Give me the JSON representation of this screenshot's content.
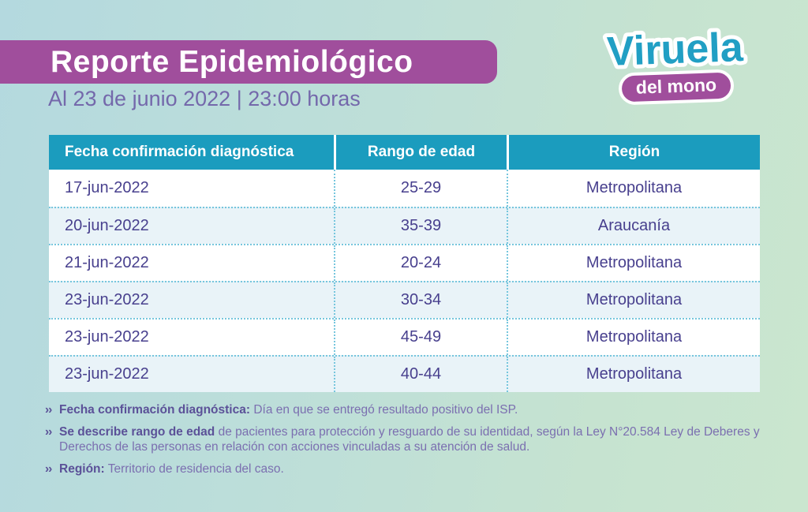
{
  "header": {
    "title": "Reporte Epidemiológico",
    "subtitle": "Al 23 de junio 2022 | 23:00 horas"
  },
  "logo": {
    "line1": "Viruela",
    "line2": "del mono"
  },
  "table": {
    "columns": [
      "Fecha confirmación diagnóstica",
      "Rango de edad",
      "Región"
    ],
    "rows": [
      [
        "17-jun-2022",
        "25-29",
        "Metropolitana"
      ],
      [
        "20-jun-2022",
        "35-39",
        "Araucanía"
      ],
      [
        "21-jun-2022",
        "20-24",
        "Metropolitana"
      ],
      [
        "23-jun-2022",
        "30-34",
        "Metropolitana"
      ],
      [
        "23-jun-2022",
        "45-49",
        "Metropolitana"
      ],
      [
        "23-jun-2022",
        "40-44",
        "Metropolitana"
      ]
    ]
  },
  "notes": [
    {
      "bullet": "››",
      "bold": "Fecha confirmación diagnóstica:",
      "text": " Día en que se entregó resultado positivo del ISP."
    },
    {
      "bullet": "››",
      "bold": "Se describe rango de edad",
      "text": " de pacientes para protección y resguardo de su identidad, según la Ley N°20.584 Ley de Deberes y Derechos de las personas en relación con acciones vinculadas a su atención de salud."
    },
    {
      "bullet": "››",
      "bold": "Región:",
      "text": " Territorio de residencia del caso."
    }
  ],
  "colors": {
    "banner_purple": "#a04e9c",
    "header_teal": "#1b9cbe",
    "logo_teal": "#219fc4",
    "table_text_indigo": "#48408e",
    "subtitle_purple": "#7468ab",
    "note_bold_purple": "#5b5198",
    "note_text_purple": "#7b6fb0",
    "row_alt_blue": "#e9f3f8",
    "dotted_line_blue": "#76c6dd",
    "background_left": "#b4d9df",
    "background_right": "#cae6cf"
  }
}
